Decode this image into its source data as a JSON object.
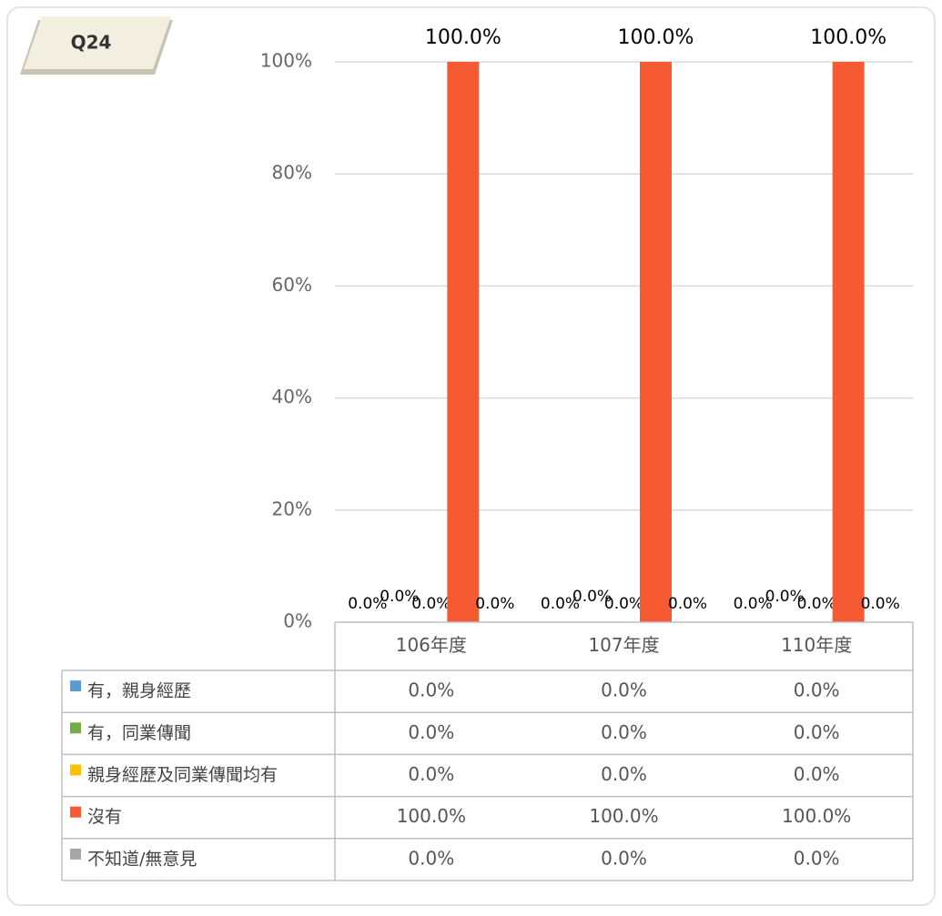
{
  "badge": "Q24",
  "chart_data": {
    "type": "bar",
    "categories": [
      "106年度",
      "107年度",
      "110年度"
    ],
    "series": [
      {
        "name": "有，親身經歷",
        "color": "#5b9bd5",
        "values": [
          0,
          0,
          0
        ],
        "value_labels": [
          "0.0%",
          "0.0%",
          "0.0%"
        ]
      },
      {
        "name": "有，同業傳聞",
        "color": "#70ad47",
        "values": [
          0,
          0,
          0
        ],
        "value_labels": [
          "0.0%",
          "0.0%",
          "0.0%"
        ]
      },
      {
        "name": "親身經歷及同業傳聞均有",
        "color": "#ffc000",
        "values": [
          0,
          0,
          0
        ],
        "value_labels": [
          "0.0%",
          "0.0%",
          "0.0%"
        ]
      },
      {
        "name": "沒有",
        "color": "#f55a33",
        "values": [
          100,
          100,
          100
        ],
        "value_labels": [
          "100.0%",
          "100.0%",
          "100.0%"
        ]
      },
      {
        "name": "不知道/無意見",
        "color": "#a5a5a5",
        "values": [
          0,
          0,
          0
        ],
        "value_labels": [
          "0.0%",
          "0.0%",
          "0.0%"
        ]
      }
    ],
    "ylim": [
      0,
      100
    ],
    "yticks": [
      {
        "value": 0,
        "label": "0%"
      },
      {
        "value": 20,
        "label": "20%"
      },
      {
        "value": 40,
        "label": "40%"
      },
      {
        "value": 60,
        "label": "60%"
      },
      {
        "value": 80,
        "label": "80%"
      },
      {
        "value": 100,
        "label": "100%"
      }
    ],
    "grid": true
  }
}
